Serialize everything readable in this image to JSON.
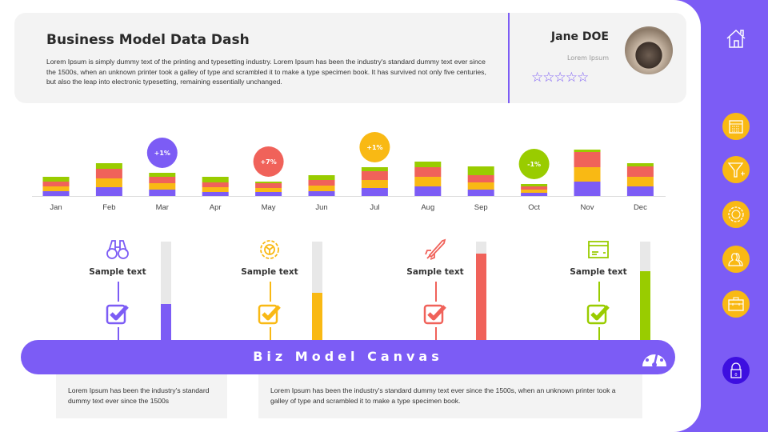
{
  "header": {
    "title": "Business Model Data Dash",
    "description": "Lorem Ipsum is simply dummy text of the printing and typesetting industry. Lorem Ipsum has been the industry's standard dummy text ever since the 1500s, when an unknown printer took a galley of type and scrambled it to make a type specimen book. It has survived  not only five centuries, but also the leap  into electronic typesetting, remaining essentially  unchanged."
  },
  "profile": {
    "name": "Jane DOE",
    "role": "Lorem Ipsum",
    "rating": 0,
    "max_rating": 5,
    "stars": "☆☆☆☆☆"
  },
  "colors": {
    "purple": "#7c5cf5",
    "yellow": "#f9b914",
    "red": "#f0625a",
    "green": "#99cc00",
    "lock": "#3d0fe0"
  },
  "chart_data": {
    "type": "bar",
    "stacked": true,
    "categories": [
      "Jan",
      "Feb",
      "Mar",
      "Apr",
      "May",
      "Jun",
      "Jul",
      "Aug",
      "Sep",
      "Oct",
      "Nov",
      "Dec"
    ],
    "series": [
      {
        "color": "#7c5cf5",
        "values": [
          6,
          11,
          8,
          5,
          5,
          6,
          10,
          12,
          8,
          4,
          18,
          12
        ]
      },
      {
        "color": "#f9b914",
        "values": [
          6,
          11,
          8,
          6,
          5,
          7,
          10,
          12,
          9,
          4,
          18,
          12
        ]
      },
      {
        "color": "#f0625a",
        "values": [
          6,
          12,
          8,
          6,
          6,
          7,
          11,
          12,
          9,
          4,
          19,
          13
        ]
      },
      {
        "color": "#99cc00",
        "values": [
          6,
          7,
          5,
          7,
          2,
          6,
          5,
          7,
          11,
          3,
          3,
          4
        ]
      }
    ],
    "annotations": [
      {
        "category": "Mar",
        "label": "+1%",
        "color": "#7c5cf5"
      },
      {
        "category": "May",
        "label": "+7%",
        "color": "#f0625a"
      },
      {
        "category": "Jul",
        "label": "+1%",
        "color": "#f9b914"
      },
      {
        "category": "Oct",
        "label": "-1%",
        "color": "#99cc00"
      }
    ]
  },
  "kpis": [
    {
      "label": "Sample text",
      "icon": "binoculars-icon",
      "color": "#7c5cf5",
      "progress": 37
    },
    {
      "label": "Sample text",
      "icon": "gear-icon",
      "color": "#f9b914",
      "progress": 48
    },
    {
      "label": "Sample text",
      "icon": "rocket-icon",
      "color": "#f0625a",
      "progress": 88
    },
    {
      "label": "Sample text",
      "icon": "credit-card-icon",
      "color": "#99cc00",
      "progress": 70
    }
  ],
  "banner": {
    "title": "Biz Model Canvas",
    "icon": "gauge-icon"
  },
  "notes": [
    "Lorem Ipsum has been the industry's standard dummy text ever since the 1500s",
    "Lorem Ipsum has been the industry's standard dummy text ever since the 1500s, when an unknown printer took a galley of type and scrambled it to make a type specimen book."
  ],
  "sidebar": {
    "items": [
      "home-icon",
      "calendar-icon",
      "funnel-icon",
      "gear-icon",
      "users-icon",
      "briefcase-icon"
    ],
    "lock_label": "0"
  }
}
